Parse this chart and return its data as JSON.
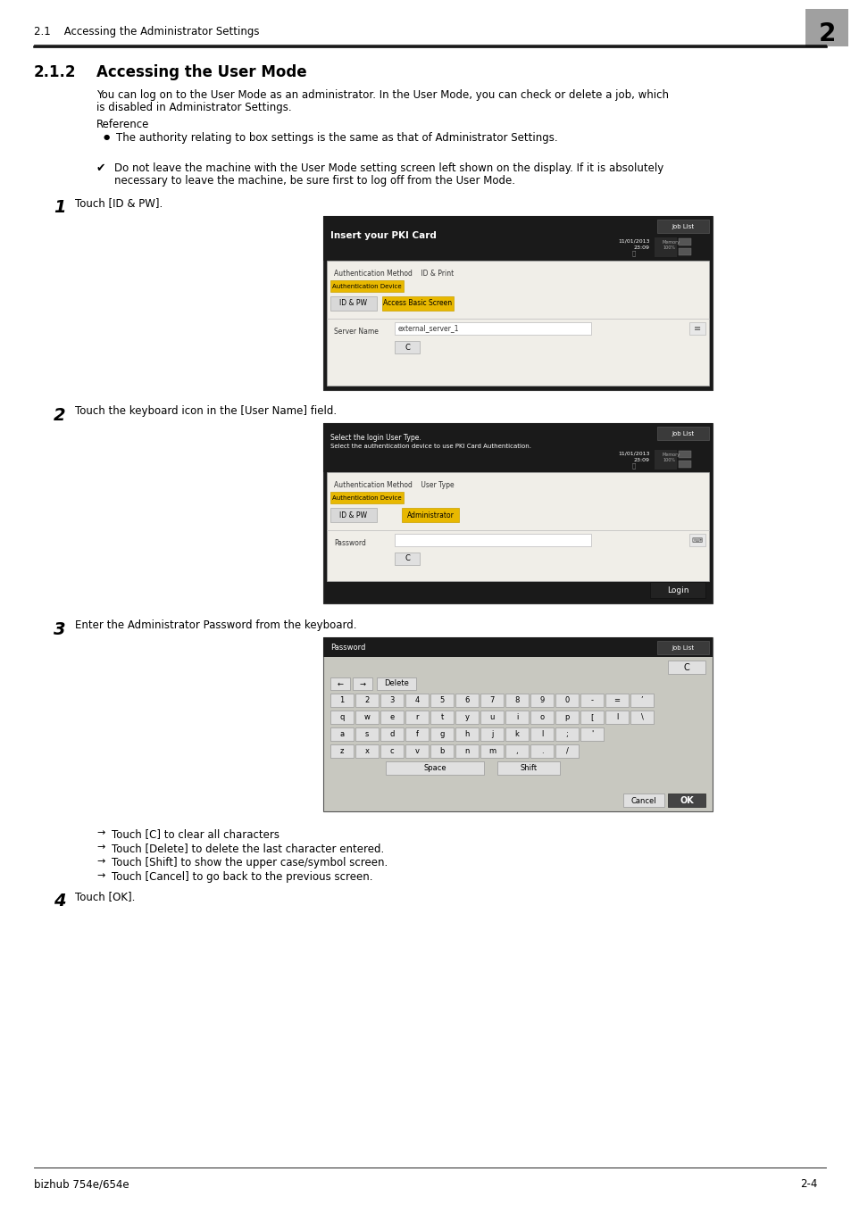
{
  "page_bg": "#ffffff",
  "header_section_text": "2.1    Accessing the Administrator Settings",
  "header_number": "2",
  "section_title_num": "2.1.2",
  "section_title_text": "Accessing the User Mode",
  "body_line1": "You can log on to the User Mode as an administrator. In the User Mode, you can check or delete a job, which",
  "body_line2": "is disabled in Administrator Settings.",
  "reference_label": "Reference",
  "bullet_text": "The authority relating to box settings is the same as that of Administrator Settings.",
  "check_line1": "Do not leave the machine with the User Mode setting screen left shown on the display. If it is absolutely",
  "check_line2": "necessary to leave the machine, be sure first to log off from the User Mode.",
  "step1_text": "Touch [ID & PW].",
  "step2_text": "Touch the keyboard icon in the [User Name] field.",
  "step3_text": "Enter the Administrator Password from the keyboard.",
  "arrow_bullets": [
    "Touch [C] to clear all characters",
    "Touch [Delete] to delete the last character entered.",
    "Touch [Shift] to show the upper case/symbol screen.",
    "Touch [Cancel] to go back to the previous screen."
  ],
  "step4_text": "Touch [OK].",
  "footer_left": "bizhub 754e/654e",
  "footer_right": "2-4"
}
